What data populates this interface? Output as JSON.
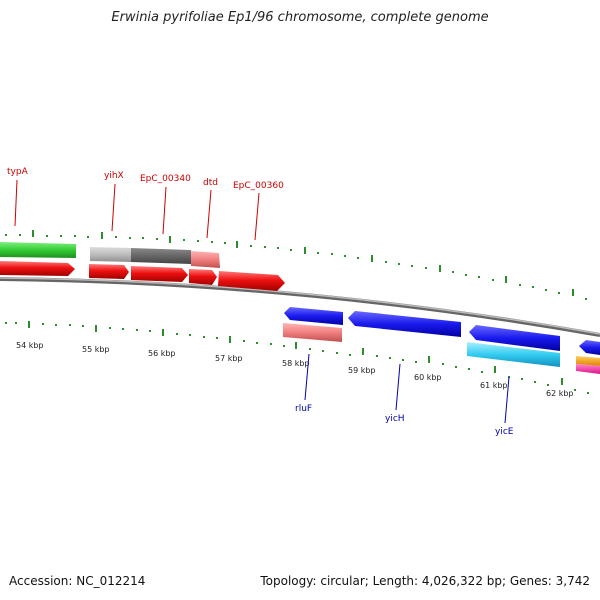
{
  "title": "Erwinia pyrifoliae Ep1/96 chromosome, complete genome",
  "footer": {
    "accession": "Accession: NC_012214",
    "summary": "Topology: circular; Length: 4,026,322 bp; Genes: 3,742"
  },
  "scale_labels": [
    "54 kbp",
    "55 kbp",
    "56 kbp",
    "57 kbp",
    "58 kbp",
    "59 kbp",
    "60 kbp",
    "61 kbp",
    "62 kbp"
  ],
  "gene_labels_forward": [
    "typA",
    "yihX",
    "EpC_00340",
    "dtd",
    "EpC_00360"
  ],
  "gene_labels_reverse": [
    "rluF",
    "yicH",
    "yicE"
  ],
  "colors": {
    "forward_label": "#cc0000",
    "reverse_label": "#0000aa",
    "tick": "#2e8b2e",
    "backbone": "#888888"
  }
}
